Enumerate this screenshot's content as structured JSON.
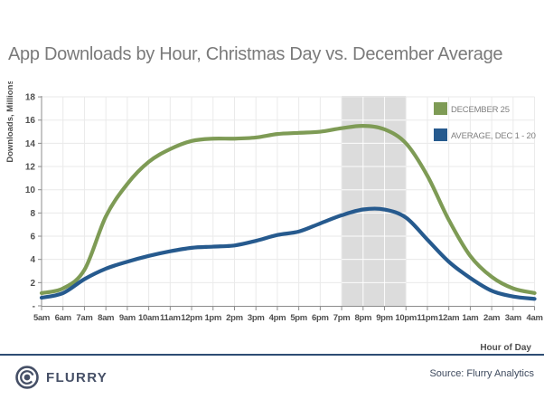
{
  "title": "App Downloads by Hour, Christmas Day vs. December Average",
  "chart_data": {
    "type": "line",
    "x": [
      "5am",
      "6am",
      "7am",
      "8am",
      "9am",
      "10am",
      "11am",
      "12pm",
      "1pm",
      "2pm",
      "3pm",
      "4pm",
      "5pm",
      "6pm",
      "7pm",
      "8pm",
      "9pm",
      "10pm",
      "11pm",
      "12am",
      "1am",
      "2am",
      "3am",
      "4am"
    ],
    "xlabel": "Hour of Day",
    "ylabel": "Downloads, Millions",
    "ylim": [
      0,
      18
    ],
    "ytick_step": 2,
    "yzero_label": "-",
    "grid": true,
    "legend_position": "top-right",
    "highlight_band": {
      "from": "7pm",
      "to": "10pm"
    },
    "series": [
      {
        "name": "DECEMBER 25",
        "color": "#7e9b55",
        "values": [
          1.1,
          1.5,
          3.1,
          7.7,
          10.5,
          12.4,
          13.5,
          14.2,
          14.4,
          14.4,
          14.5,
          14.8,
          14.9,
          15.0,
          15.3,
          15.5,
          15.2,
          14.0,
          11.2,
          7.4,
          4.3,
          2.5,
          1.5,
          1.1
        ]
      },
      {
        "name": "AVERAGE, DEC 1 - 20",
        "color": "#265a8e",
        "values": [
          0.7,
          1.1,
          2.3,
          3.2,
          3.8,
          4.3,
          4.7,
          5.0,
          5.1,
          5.2,
          5.6,
          6.1,
          6.4,
          7.1,
          7.8,
          8.3,
          8.3,
          7.6,
          5.7,
          3.8,
          2.4,
          1.3,
          0.8,
          0.6
        ]
      }
    ]
  },
  "colors": {
    "band": "#dcdcdc",
    "grid": "#eaeaea",
    "axis": "#8c8c8c",
    "tick_text": "#4f4f4f",
    "title_text": "#7a7a7a",
    "legend_text": "#7f7f7f",
    "divider": "#2e4d74",
    "brand": "#454f66",
    "source_text": "#3e4a5e"
  },
  "footer": {
    "logo_text": "FLURRY",
    "source": "Source: Flurry Analytics"
  }
}
